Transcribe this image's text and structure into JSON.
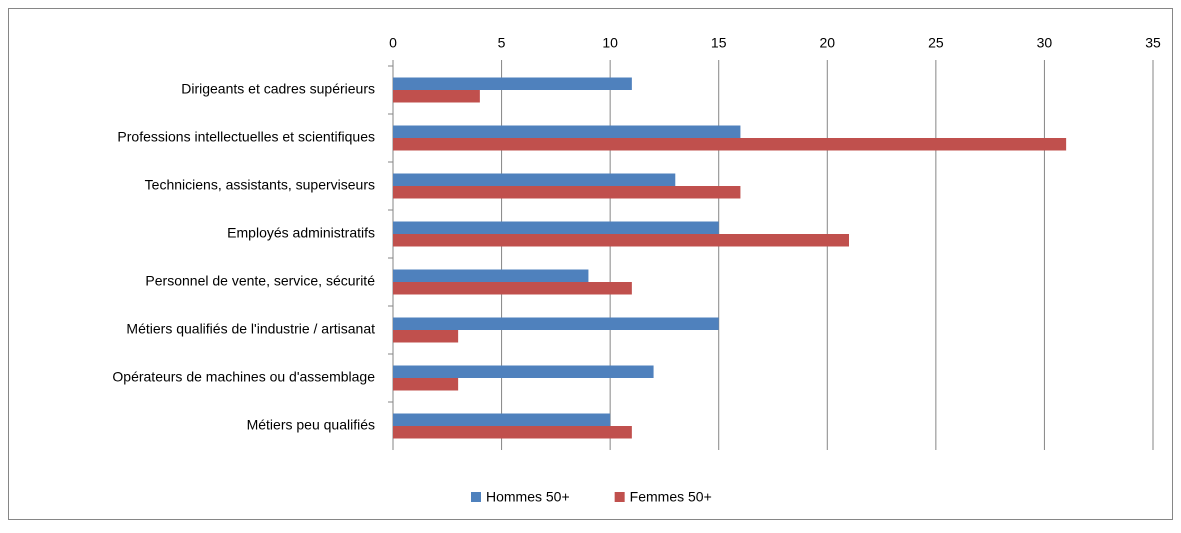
{
  "chart_data": {
    "type": "hbar",
    "categories": [
      "Dirigeants et cadres supérieurs",
      "Professions intellectuelles et scientifiques",
      "Techniciens, assistants, superviseurs",
      "Employés administratifs",
      "Personnel de vente, service, sécurité",
      "Métiers qualifiés de l'industrie / artisanat",
      "Opérateurs de machines ou d'assemblage",
      "Métiers peu qualifiés"
    ],
    "series": [
      {
        "name": "Hommes 50+",
        "color": "#4f81bd",
        "values": [
          11,
          16,
          13,
          15,
          9,
          15,
          12,
          10
        ]
      },
      {
        "name": "Femmes 50+",
        "color": "#c0504d",
        "values": [
          4,
          31,
          16,
          21,
          11,
          3,
          3,
          11
        ]
      }
    ],
    "xlim": [
      0,
      35
    ],
    "xticks": [
      0,
      5,
      10,
      15,
      20,
      25,
      30,
      35
    ],
    "grid": true,
    "legend": "bottom"
  }
}
